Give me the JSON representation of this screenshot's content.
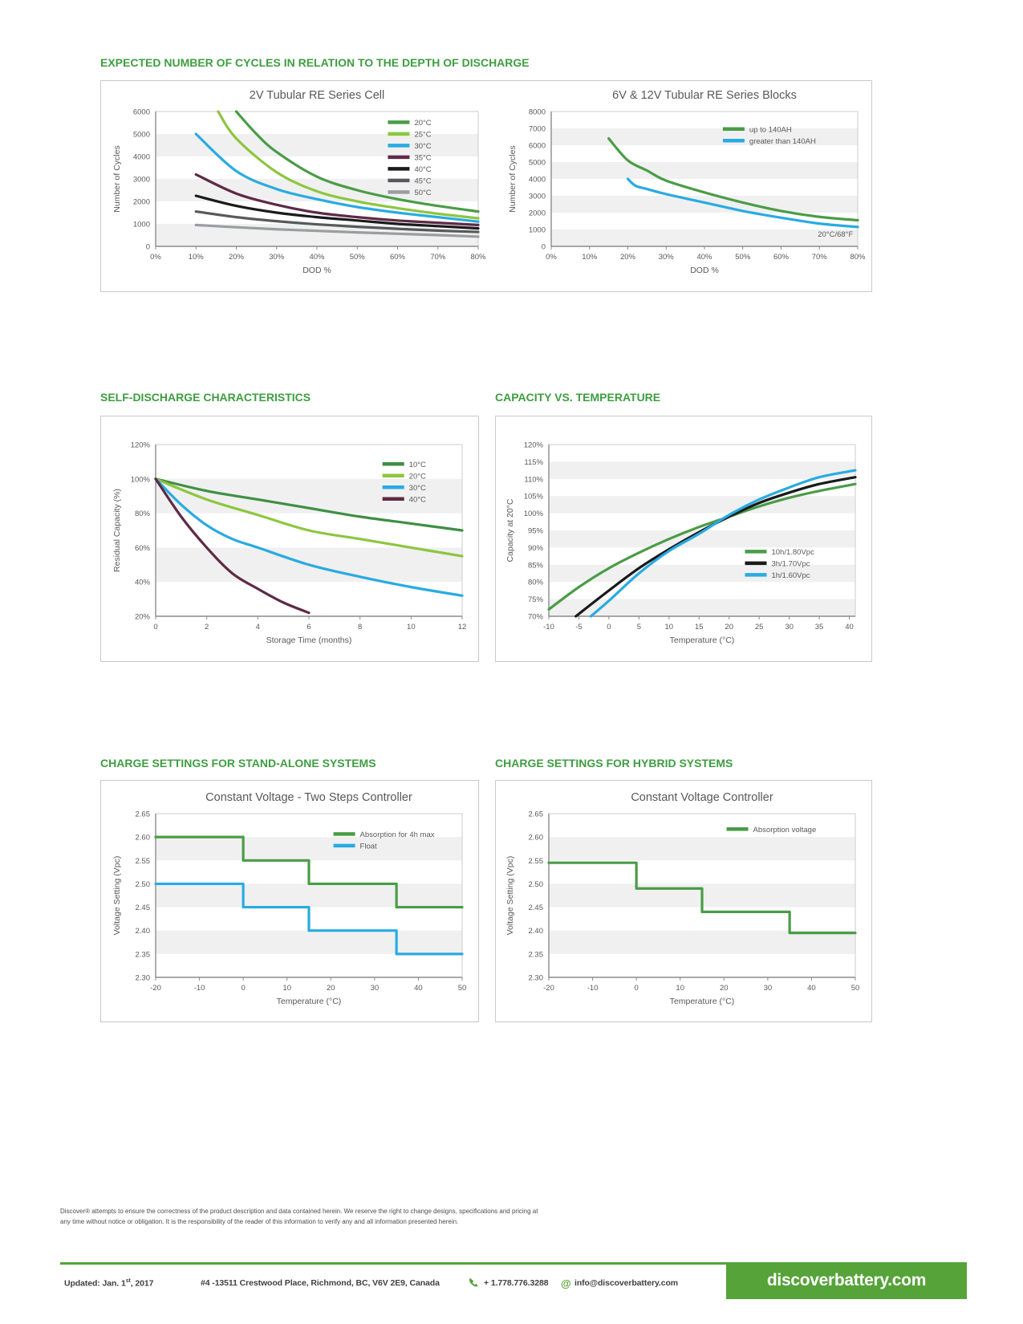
{
  "sections": [
    {
      "title": "EXPECTED NUMBER OF CYCLES IN RELATION TO THE DEPTH OF DISCHARGE"
    },
    {
      "title": "SELF-DISCHARGE CHARACTERISTICS"
    },
    {
      "title": "CAPACITY VS. TEMPERATURE"
    },
    {
      "title": "CHARGE SETTINGS FOR STAND-ALONE SYSTEMS"
    },
    {
      "title": "CHARGE SETTINGS FOR HYBRID SYSTEMS"
    }
  ],
  "disclaimer": {
    "line1": "Discover® attempts to ensure the correctness of the product description and data contained herein.  We reserve the right to change designs, specifications and pricing at",
    "line2": "any time without notice or obligation.  It is the responsibility of the reader of this information to verify any and all information presented herein."
  },
  "footer": {
    "updated_prefix": "Updated: Jan. 1",
    "updated_sup": "st",
    "updated_suffix": ", 2017",
    "address": "#4 -13511 Crestwood Place, Richmond, BC, V6V 2E9, Canada",
    "phone": "+ 1.778.776.3288",
    "email": "info@discoverbattery.com",
    "website": "discoverbattery.com",
    "phone_icon": "phone-icon",
    "email_icon": "at-icon"
  },
  "colors": {
    "heading_green": "#3f9d42",
    "footer_green": "#55a339",
    "series_dark_green": "#4a9c47",
    "series_light_green": "#8dc63f",
    "series_cyan": "#29abe2",
    "series_maroon": "#5e2a46",
    "series_black": "#1a1a1a",
    "series_dark_gray": "#58595b",
    "series_gray": "#9b9da0",
    "stripe_gray": "#f0f0f0",
    "text_gray": "#58595b"
  },
  "chart_data": [
    {
      "id": "cycles-2v-cell",
      "type": "line",
      "title": "2V Tubular RE Series Cell",
      "xlabel": "DOD %",
      "ylabel": "Number of Cycles",
      "xlim": [
        0,
        80
      ],
      "ylim": [
        0,
        6000
      ],
      "xtick_vals": [
        0,
        10,
        20,
        30,
        40,
        50,
        60,
        70,
        80
      ],
      "xtick_labels": [
        "0%",
        "10%",
        "20%",
        "30%",
        "40%",
        "50%",
        "60%",
        "70%",
        "80%"
      ],
      "ytick_vals": [
        0,
        1000,
        2000,
        3000,
        4000,
        5000,
        6000
      ],
      "ytick_labels": [
        "0",
        "1000",
        "2000",
        "3000",
        "4000",
        "5000",
        "6000"
      ],
      "stripe_offset": 0,
      "smooth": true,
      "grid": false,
      "legend": {
        "position": "top-right",
        "fx": 0.72,
        "fy": 0.05
      },
      "series": [
        {
          "name": "20°C",
          "color": "#4a9c47",
          "x": [
            20,
            25,
            30,
            40,
            50,
            60,
            70,
            80
          ],
          "y": [
            6000,
            5000,
            4200,
            3100,
            2500,
            2100,
            1800,
            1550
          ]
        },
        {
          "name": "25°C",
          "color": "#8dc63f",
          "x": [
            15.5,
            20,
            30,
            40,
            50,
            60,
            70,
            80
          ],
          "y": [
            6000,
            4800,
            3300,
            2450,
            2000,
            1700,
            1450,
            1250
          ]
        },
        {
          "name": "30°C",
          "color": "#29abe2",
          "x": [
            10,
            20,
            30,
            40,
            50,
            60,
            70,
            80
          ],
          "y": [
            5000,
            3350,
            2550,
            2100,
            1750,
            1500,
            1300,
            1100
          ]
        },
        {
          "name": "35°C",
          "color": "#5e2a46",
          "x": [
            10,
            20,
            30,
            40,
            50,
            60,
            70,
            80
          ],
          "y": [
            3200,
            2350,
            1850,
            1500,
            1300,
            1150,
            1050,
            950
          ]
        },
        {
          "name": "40°C",
          "color": "#1a1a1a",
          "x": [
            10,
            20,
            30,
            40,
            50,
            60,
            70,
            80
          ],
          "y": [
            2250,
            1800,
            1500,
            1300,
            1150,
            1000,
            900,
            800
          ]
        },
        {
          "name": "45°C",
          "color": "#58595b",
          "x": [
            10,
            20,
            30,
            40,
            50,
            60,
            70,
            80
          ],
          "y": [
            1550,
            1300,
            1120,
            980,
            870,
            780,
            700,
            640
          ]
        },
        {
          "name": "50°C",
          "color": "#9b9da0",
          "x": [
            10,
            20,
            30,
            40,
            50,
            60,
            70,
            80
          ],
          "y": [
            950,
            850,
            760,
            690,
            620,
            560,
            500,
            430
          ]
        }
      ]
    },
    {
      "id": "cycles-6v-12v-blocks",
      "type": "line",
      "title": "6V & 12V Tubular RE Series Blocks",
      "xlabel": "DOD %",
      "ylabel": "Number of Cycles",
      "xlim": [
        0,
        80
      ],
      "ylim": [
        0,
        8000
      ],
      "xtick_vals": [
        0,
        10,
        20,
        30,
        40,
        50,
        60,
        70,
        80
      ],
      "xtick_labels": [
        "0%",
        "10%",
        "20%",
        "30%",
        "40%",
        "50%",
        "60%",
        "70%",
        "80%"
      ],
      "ytick_vals": [
        0,
        1000,
        2000,
        3000,
        4000,
        5000,
        6000,
        7000,
        8000
      ],
      "ytick_labels": [
        "0",
        "1000",
        "2000",
        "3000",
        "4000",
        "5000",
        "6000",
        "7000",
        "8000"
      ],
      "stripe_offset": 0,
      "smooth": true,
      "grid": false,
      "legend": {
        "position": "top-right",
        "fx": 0.56,
        "fy": 0.1
      },
      "annotation": {
        "text": "20°C/68°F",
        "fx": 0.985,
        "fy": 0.93
      },
      "series": [
        {
          "name": "up to 140AH",
          "color": "#4a9c47",
          "x": [
            15,
            20,
            25,
            30,
            40,
            50,
            60,
            70,
            80
          ],
          "y": [
            6400,
            5100,
            4500,
            3900,
            3200,
            2600,
            2100,
            1750,
            1550
          ]
        },
        {
          "name": "greater than 140AH",
          "color": "#29abe2",
          "x": [
            20,
            22,
            25,
            30,
            40,
            50,
            60,
            70,
            80
          ],
          "y": [
            4000,
            3600,
            3400,
            3100,
            2600,
            2100,
            1700,
            1350,
            1150
          ]
        }
      ]
    },
    {
      "id": "self-discharge",
      "type": "line",
      "title": "",
      "xlabel": "Storage Time (months)",
      "ylabel": "Residual Capacity (%)",
      "xlim": [
        0,
        12
      ],
      "ylim": [
        20,
        120
      ],
      "xtick_vals": [
        0,
        2,
        4,
        6,
        8,
        10,
        12
      ],
      "xtick_labels": [
        "0",
        "2",
        "4",
        "6",
        "8",
        "10",
        "12"
      ],
      "ytick_vals": [
        20,
        40,
        60,
        80,
        100,
        120
      ],
      "ytick_labels": [
        "20%",
        "40%",
        "60%",
        "80%",
        "100%",
        "120%"
      ],
      "stripe_offset": 1,
      "smooth": true,
      "grid": false,
      "legend": {
        "position": "top-right",
        "fx": 0.74,
        "fy": 0.09
      },
      "series": [
        {
          "name": "10°C",
          "color": "#3f8f44",
          "x": [
            0,
            2,
            4,
            6,
            8,
            10,
            12
          ],
          "y": [
            100,
            93,
            88,
            83,
            78,
            74,
            70
          ]
        },
        {
          "name": "20°C",
          "color": "#8dc63f",
          "x": [
            0,
            2,
            4,
            6,
            8,
            10,
            12
          ],
          "y": [
            100,
            88,
            79,
            70,
            65,
            60,
            55
          ]
        },
        {
          "name": "30°C",
          "color": "#29abe2",
          "x": [
            0,
            1,
            2,
            3,
            4,
            6,
            8,
            10,
            12
          ],
          "y": [
            100,
            85,
            73,
            65,
            60,
            50,
            43,
            37,
            32
          ]
        },
        {
          "name": "40°C",
          "color": "#5e2a46",
          "x": [
            0,
            1,
            2,
            3,
            4,
            5,
            6
          ],
          "y": [
            100,
            78,
            60,
            45,
            36,
            28,
            22
          ]
        }
      ]
    },
    {
      "id": "capacity-vs-temperature",
      "type": "line",
      "title": "",
      "xlabel": "Temperature (°C)",
      "ylabel": "Capacity at 20°C",
      "xlim": [
        -10,
        41
      ],
      "ylim": [
        70,
        120
      ],
      "xtick_vals": [
        -10,
        -5,
        0,
        5,
        10,
        15,
        20,
        25,
        30,
        35,
        40
      ],
      "xtick_labels": [
        "-10",
        "-5",
        "0",
        "5",
        "10",
        "15",
        "20",
        "25",
        "30",
        "35",
        "40"
      ],
      "ytick_vals": [
        70,
        75,
        80,
        85,
        90,
        95,
        100,
        105,
        110,
        115,
        120
      ],
      "ytick_labels": [
        "70%",
        "75%",
        "80%",
        "85%",
        "90%",
        "95%",
        "100%",
        "105%",
        "110%",
        "115%",
        "120%"
      ],
      "stripe_offset": 0,
      "smooth": true,
      "grid": false,
      "legend": {
        "position": "middle-right",
        "fx": 0.64,
        "fy": 0.6
      },
      "series": [
        {
          "name": "10h/1.80Vpc",
          "color": "#4a9c47",
          "x": [
            -10,
            -5,
            0,
            5,
            10,
            15,
            20,
            25,
            30,
            35,
            41
          ],
          "y": [
            72,
            78.5,
            84,
            88.5,
            92.5,
            96,
            99,
            102,
            104.5,
            106.5,
            108.5
          ]
        },
        {
          "name": "3h/1.70Vpc",
          "color": "#1a1a1a",
          "x": [
            -5.5,
            0,
            5,
            10,
            15,
            20,
            25,
            30,
            35,
            41
          ],
          "y": [
            70,
            77.5,
            84,
            89.5,
            94.5,
            99,
            103,
            106,
            108.5,
            110.5
          ]
        },
        {
          "name": "1h/1.60Vpc",
          "color": "#29abe2",
          "x": [
            -3,
            0,
            5,
            10,
            15,
            20,
            25,
            30,
            35,
            41
          ],
          "y": [
            70,
            74.5,
            82.5,
            89,
            94,
            99.5,
            104,
            107.5,
            110.5,
            112.5
          ]
        }
      ]
    },
    {
      "id": "charge-stand-alone",
      "type": "line",
      "title": "Constant Voltage - Two Steps Controller",
      "xlabel": "Temperature (°C)",
      "ylabel": "Voltage Setting (Vpc)",
      "xlim": [
        -20,
        50
      ],
      "ylim": [
        2.3,
        2.65
      ],
      "xtick_vals": [
        -20,
        -10,
        0,
        10,
        20,
        30,
        40,
        50
      ],
      "xtick_labels": [
        "-20",
        "-10",
        "0",
        "10",
        "20",
        "30",
        "40",
        "50"
      ],
      "ytick_vals": [
        2.3,
        2.35,
        2.4,
        2.45,
        2.5,
        2.55,
        2.6,
        2.65
      ],
      "ytick_labels": [
        "2.30",
        "2.35",
        "2.40",
        "2.45",
        "2.50",
        "2.55",
        "2.60",
        "2.65"
      ],
      "stripe_offset": 1,
      "smooth": false,
      "grid": false,
      "legend": {
        "position": "top-right",
        "fx": 0.58,
        "fy": 0.1
      },
      "series": [
        {
          "name": "Absorption for 4h max",
          "color": "#4a9c47",
          "x": [
            -20,
            0,
            0,
            15,
            15,
            35,
            35,
            50
          ],
          "y": [
            2.6,
            2.6,
            2.55,
            2.55,
            2.5,
            2.5,
            2.45,
            2.45
          ]
        },
        {
          "name": "Float",
          "color": "#29abe2",
          "x": [
            -20,
            0,
            0,
            15,
            15,
            35,
            35,
            50
          ],
          "y": [
            2.5,
            2.5,
            2.45,
            2.45,
            2.4,
            2.4,
            2.35,
            2.35
          ]
        }
      ]
    },
    {
      "id": "charge-hybrid",
      "type": "line",
      "title": "Constant Voltage Controller",
      "xlabel": "Temperature (°C)",
      "ylabel": "Voltage Setting (Vpc)",
      "xlim": [
        -20,
        50
      ],
      "ylim": [
        2.3,
        2.65
      ],
      "xtick_vals": [
        -20,
        -10,
        0,
        10,
        20,
        30,
        40,
        50
      ],
      "xtick_labels": [
        "-20",
        "-10",
        "0",
        "10",
        "20",
        "30",
        "40",
        "50"
      ],
      "ytick_vals": [
        2.3,
        2.35,
        2.4,
        2.45,
        2.5,
        2.55,
        2.6,
        2.65
      ],
      "ytick_labels": [
        "2.30",
        "2.35",
        "2.40",
        "2.45",
        "2.50",
        "2.55",
        "2.60",
        "2.65"
      ],
      "stripe_offset": 1,
      "smooth": false,
      "grid": false,
      "legend": {
        "position": "top-right",
        "fx": 0.58,
        "fy": 0.07
      },
      "series": [
        {
          "name": "Absorption voltage",
          "color": "#4a9c47",
          "x": [
            -20,
            0,
            0,
            15,
            15,
            35,
            35,
            50
          ],
          "y": [
            2.545,
            2.545,
            2.49,
            2.49,
            2.44,
            2.44,
            2.395,
            2.395
          ]
        }
      ]
    }
  ]
}
